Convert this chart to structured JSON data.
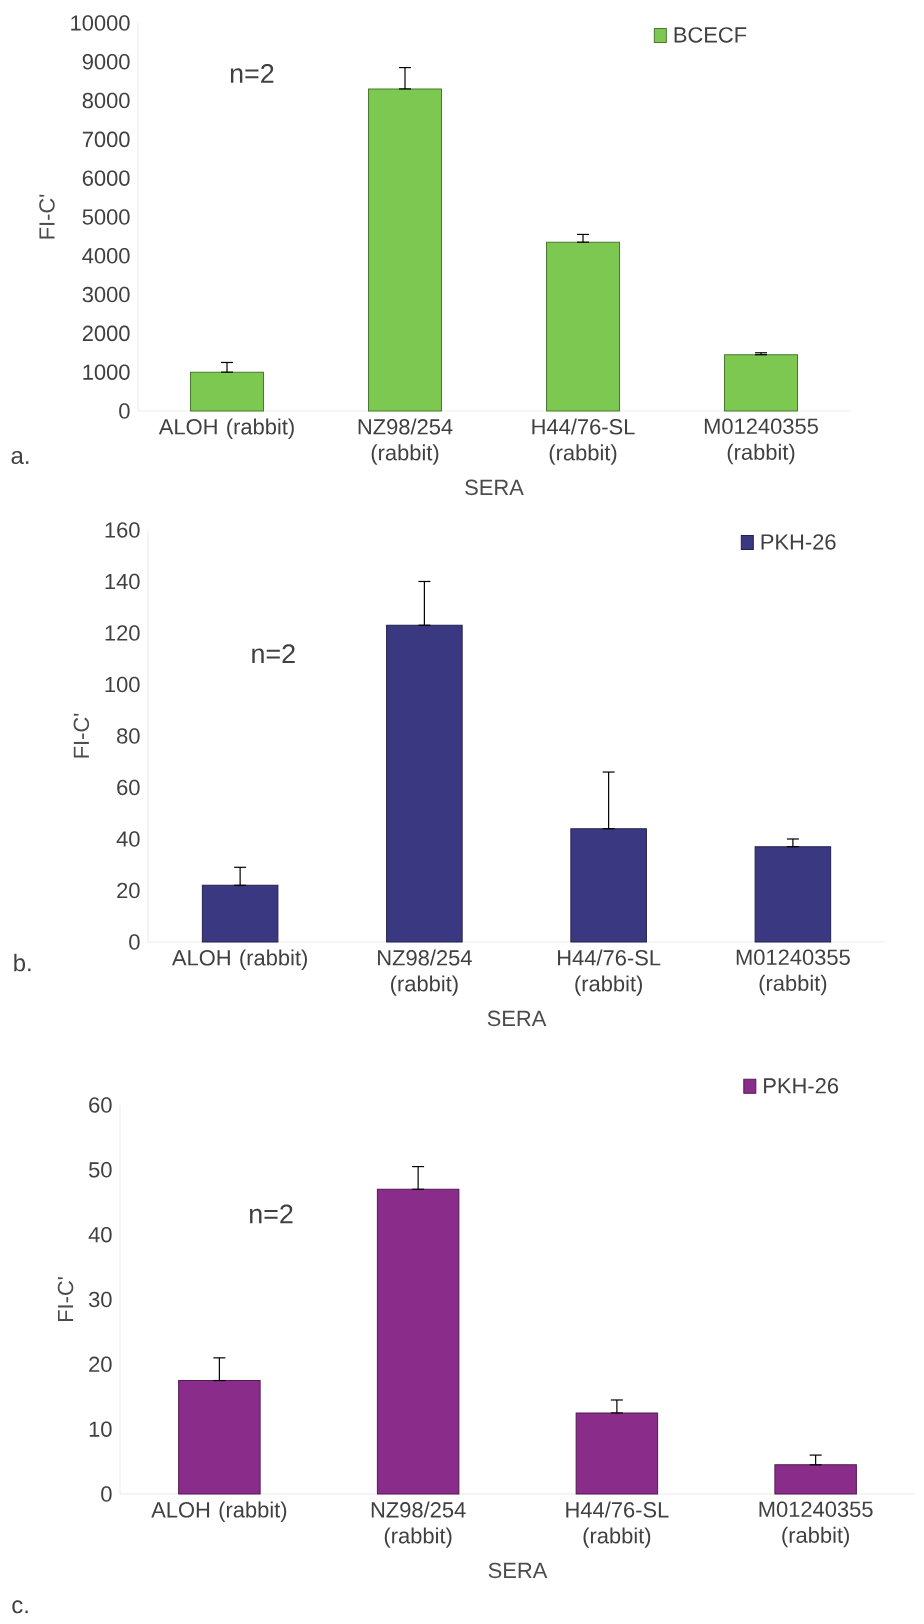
{
  "chart_data": [
    {
      "type": "bar",
      "categories": [
        "ALOH (rabbit)",
        "NZ98/254 (rabbit)",
        "H44/76-SL (rabbit)",
        "M01240355 (rabbit)"
      ],
      "series": [
        {
          "name": "BCECF",
          "color": "#7cc850",
          "values": [
            1000,
            8300,
            4350,
            1450
          ],
          "errors": [
            [
              1000,
              1250
            ],
            [
              8300,
              8850
            ],
            [
              4350,
              4550
            ],
            [
              1450,
              1500
            ]
          ]
        }
      ],
      "xlabel": "SERA",
      "ylabel": "FI-C'",
      "ylim": [
        0,
        10000
      ],
      "yticks": [
        0,
        1000,
        2000,
        3000,
        4000,
        5000,
        6000,
        7000,
        8000,
        9000,
        10000
      ],
      "legend": "top right",
      "annotations": [
        "n=2",
        "a."
      ]
    },
    {
      "type": "bar",
      "categories": [
        "ALOH (rabbit)",
        "NZ98/254 (rabbit)",
        "H44/76-SL (rabbit)",
        "M01240355 (rabbit)"
      ],
      "series": [
        {
          "name": "PKH-26",
          "color": "#3a3880",
          "values": [
            22,
            123,
            44,
            37
          ],
          "errors": [
            [
              22,
              29
            ],
            [
              123,
              140
            ],
            [
              44,
              66
            ],
            [
              37,
              40
            ]
          ]
        }
      ],
      "xlabel": "SERA",
      "ylabel": "FI-C'",
      "ylim": [
        0,
        160
      ],
      "yticks": [
        0,
        20,
        40,
        60,
        80,
        100,
        120,
        140,
        160
      ],
      "legend": "top right",
      "annotations": [
        "n=2",
        "b."
      ]
    },
    {
      "type": "bar",
      "categories": [
        "ALOH (rabbit)",
        "NZ98/254 (rabbit)",
        "H44/76-SL (rabbit)",
        "M01240355 (rabbit)"
      ],
      "series": [
        {
          "name": "PKH-26",
          "color": "#8a2c8a",
          "values": [
            17.5,
            47,
            12.5,
            4.5
          ],
          "errors": [
            [
              17.5,
              21
            ],
            [
              47,
              50.5
            ],
            [
              12.5,
              14.5
            ],
            [
              4.5,
              6
            ]
          ]
        }
      ],
      "xlabel": "SERA",
      "ylabel": "FI-C'",
      "ylim": [
        0,
        60
      ],
      "yticks": [
        0,
        10,
        20,
        30,
        40,
        50,
        60
      ],
      "legend": "top right",
      "annotations": [
        "n=2",
        "c."
      ]
    }
  ]
}
